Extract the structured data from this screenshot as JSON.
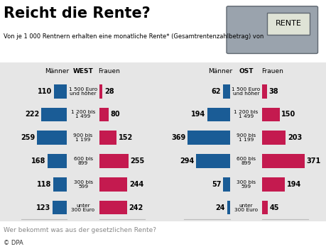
{
  "header": {
    "title": "Reicht die Rente?",
    "subtitle": "Von je 1 000 Rentnern erhalten eine monatliche Rente* (Gesamtrentenzahlbetrag) von",
    "badge": "RENTE"
  },
  "chart_data": [
    {
      "type": "bar",
      "title": "WEST",
      "orientation": "horizontal",
      "data_labels": true,
      "tick_labels": false,
      "categories": [
        "1 500 Euro\nund höher",
        "1 200 bis\n1 499",
        "900 bis\n1 199",
        "600 bis\n899",
        "300 bis\n599",
        "unter\n300 Euro"
      ],
      "xlim": [
        0,
        400
      ],
      "series": [
        {
          "name": "Männer",
          "color": "#1a5c96",
          "values": [
            110,
            222,
            259,
            168,
            118,
            123
          ]
        },
        {
          "name": "Frauen",
          "color": "#c41a4f",
          "values": [
            28,
            80,
            152,
            255,
            244,
            242
          ]
        }
      ]
    },
    {
      "type": "bar",
      "title": "OST",
      "orientation": "horizontal",
      "data_labels": true,
      "tick_labels": false,
      "categories": [
        "1 500 Euro\nund höher",
        "1 200 bis\n1 499",
        "900 bis\n1 199",
        "600 bis\n899",
        "300 bis\n599",
        "unter\n300 Euro"
      ],
      "xlim": [
        0,
        400
      ],
      "series": [
        {
          "name": "Männer",
          "color": "#1a5c96",
          "values": [
            62,
            194,
            369,
            294,
            57,
            24
          ]
        },
        {
          "name": "Frauen",
          "color": "#c41a4f",
          "values": [
            38,
            150,
            203,
            371,
            194,
            45
          ]
        }
      ]
    }
  ],
  "footer": {
    "caption": "Wer bekommt was aus der gesetzlichen Rente?",
    "credit": "© DPA"
  }
}
